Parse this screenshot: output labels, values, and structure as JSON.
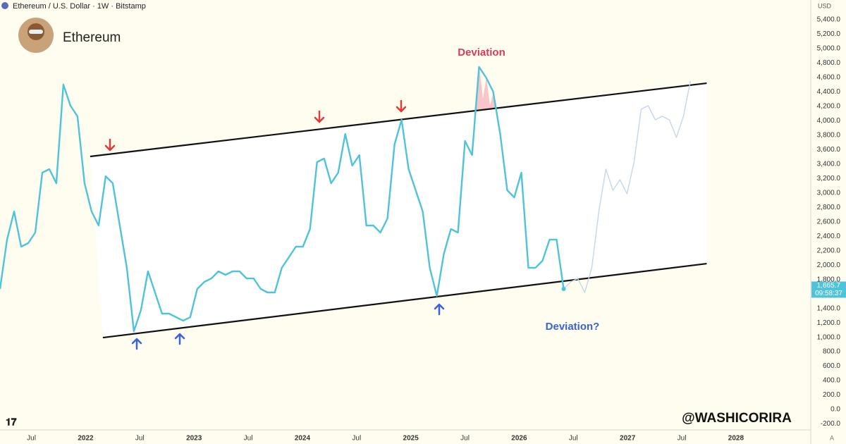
{
  "header": {
    "symbol": "Ethereum / U.S. Dollar · 1W · Bitstamp",
    "title": "Ethereum",
    "currency": "USD",
    "watermark": "@WASHICORIRA"
  },
  "chart_data": {
    "type": "line",
    "series": [
      {
        "color": "#4fc3d9",
        "x": [
          2021.21,
          2021.275,
          2021.34,
          2021.405,
          2021.47,
          2021.535,
          2021.6,
          2021.665,
          2021.73,
          2021.795,
          2021.86,
          2021.925,
          2021.99,
          2022.055,
          2022.12,
          2022.185,
          2022.25,
          2022.315,
          2022.38,
          2022.445,
          2022.51,
          2022.575,
          2022.64,
          2022.705,
          2022.77,
          2022.835,
          2022.9,
          2022.965,
          2023.03,
          2023.095,
          2023.16,
          2023.225,
          2023.29,
          2023.355,
          2023.42,
          2023.485,
          2023.55,
          2023.615,
          2023.68,
          2023.745,
          2023.81,
          2023.875,
          2023.94,
          2024.005,
          2024.07,
          2024.135,
          2024.2,
          2024.265,
          2024.33,
          2024.395,
          2024.46,
          2024.525,
          2024.59,
          2024.655,
          2024.72,
          2024.785,
          2024.85,
          2024.915,
          2024.98,
          2025.045,
          2025.11,
          2025.175,
          2025.24,
          2025.305,
          2025.37,
          2025.435,
          2025.5,
          2025.565,
          2025.63,
          2025.695,
          2025.76,
          2025.825,
          2025.89,
          2025.955,
          2026.02,
          2026.085,
          2026.15,
          2026.215,
          2026.28,
          2026.345,
          2026.41
        ],
        "values": [
          1670,
          2354,
          2744,
          2256,
          2305,
          2451,
          3281,
          3330,
          3135,
          4502,
          4209,
          4063,
          3135,
          2744,
          2549,
          3233,
          3135,
          2549,
          1963,
          1084,
          1377,
          1914,
          1621,
          1328,
          1328,
          1279,
          1230,
          1279,
          1670,
          1768,
          1816,
          1914,
          1865,
          1914,
          1914,
          1816,
          1816,
          1670,
          1621,
          1621,
          1963,
          2109,
          2256,
          2256,
          2500,
          3428,
          3477,
          3135,
          3281,
          3818,
          3379,
          3525,
          2549,
          2549,
          2451,
          2647,
          3672,
          4014,
          3330,
          3037,
          2744,
          1963,
          1572,
          2158,
          2500,
          2451,
          3721,
          3525,
          4746,
          4600,
          4404,
          3818,
          3037,
          2940,
          3281,
          1963,
          1963,
          2061,
          2354,
          2354,
          1670
        ]
      },
      {
        "color": "#c5d6ec",
        "x": [
          2026.41,
          2026.475,
          2026.54,
          2026.605,
          2026.67,
          2026.735,
          2026.8,
          2026.865,
          2026.93,
          2026.995,
          2027.06,
          2027.125,
          2027.19,
          2027.255,
          2027.32,
          2027.385,
          2027.45,
          2027.515,
          2027.58
        ],
        "values": [
          1670,
          1768,
          1816,
          1621,
          1963,
          2744,
          3330,
          3037,
          3184,
          2988,
          3428,
          4160,
          4209,
          4014,
          4063,
          4014,
          3770,
          4063,
          4551
        ]
      }
    ],
    "channel": {
      "upper": {
        "x": [
          2022.042,
          2027.73
        ],
        "values": [
          3506,
          4521
        ]
      },
      "lower": {
        "x": [
          2022.159,
          2027.73
        ],
        "values": [
          996,
          2021
        ]
      }
    },
    "annotations": [
      "Deviation",
      "Deviation?"
    ],
    "last_price": {
      "value": 1665.7,
      "label": "1,665.7"
    },
    "countdown": "09:58:37",
    "xlim": [
      2021.21,
      2028.69
    ],
    "ylim": [
      -283,
      5674
    ],
    "xticks": [
      {
        "value": 2021.5,
        "label": "Jul"
      },
      2022,
      {
        "value": 2022.5,
        "label": "Jul"
      },
      2023,
      {
        "value": 2023.5,
        "label": "Jul"
      },
      2024,
      {
        "value": 2024.5,
        "label": "Jul"
      },
      2025,
      {
        "value": 2025.5,
        "label": "Jul"
      },
      2026,
      {
        "value": 2026.5,
        "label": "Jul"
      },
      2027,
      {
        "value": 2027.5,
        "label": "Jul"
      },
      2028
    ],
    "yticks": [
      {
        "value": -200,
        "label": "-200.0"
      },
      {
        "value": 0,
        "label": "0.0"
      },
      {
        "value": 200,
        "label": "200.0"
      },
      {
        "value": 400,
        "label": "400.0"
      },
      {
        "value": 600,
        "label": "600.0"
      },
      {
        "value": 800,
        "label": "800.0"
      },
      {
        "value": 1000,
        "label": "1,000.0"
      },
      {
        "value": 1200,
        "label": "1,200.0"
      },
      {
        "value": 1400,
        "label": "1,400.0"
      },
      {
        "value": 1600,
        "label": "1,600.0"
      },
      {
        "value": 1800,
        "label": "1,800.0"
      },
      {
        "value": 2000,
        "label": "2,000.0"
      },
      {
        "value": 2200,
        "label": "2,200.0"
      },
      {
        "value": 2400,
        "label": "2,400.0"
      },
      {
        "value": 2600,
        "label": "2,600.0"
      },
      {
        "value": 2800,
        "label": "2,800.0"
      },
      {
        "value": 3000,
        "label": "3,000.0"
      },
      {
        "value": 3200,
        "label": "3,200.0"
      },
      {
        "value": 3400,
        "label": "3,400.0"
      },
      {
        "value": 3600,
        "label": "3,600.0"
      },
      {
        "value": 3800,
        "label": "3,800.0"
      },
      {
        "value": 4000,
        "label": "4,000.0"
      },
      {
        "value": 4200,
        "label": "4,200.0"
      },
      {
        "value": 4400,
        "label": "4,400.0"
      },
      {
        "value": 4600,
        "label": "4,600.0"
      },
      {
        "value": 4800,
        "label": "4,800.0"
      },
      {
        "value": 5000,
        "label": "5,000.0"
      },
      {
        "value": 5200,
        "label": "5,200.0"
      },
      {
        "value": 5400,
        "label": "5,400.0"
      }
    ]
  }
}
